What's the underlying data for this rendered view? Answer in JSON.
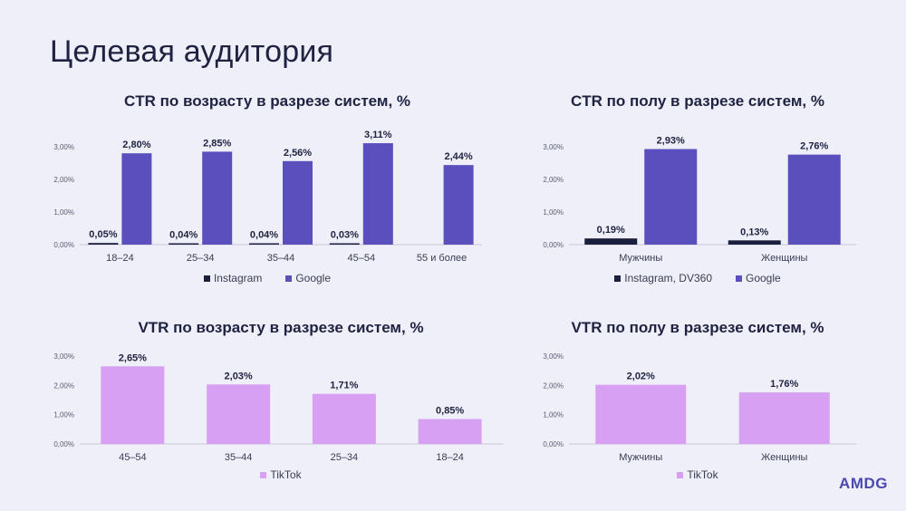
{
  "page": {
    "title": "Целевая аудитория",
    "logo": "AMDG"
  },
  "colors": {
    "instagram": "#1b1f3e",
    "google": "#5b4fbe",
    "tiktok": "#d8a0f2",
    "axis": "#c8c9d8",
    "text": "#1f2240"
  },
  "chart_data": [
    {
      "id": "ctr-age",
      "type": "bar",
      "title": "CTR по возрасту в разрезе систем, %",
      "categories": [
        "18–24",
        "25–34",
        "35–44",
        "45–54",
        "55 и более"
      ],
      "yticks": [
        "0,00%",
        "1,00%",
        "2,00%",
        "3,00%"
      ],
      "ylim": [
        0,
        3
      ],
      "series": [
        {
          "name": "Instagram",
          "color": "#1b1f3e",
          "values": [
            0.05,
            0.04,
            0.04,
            0.03,
            null
          ],
          "labels": [
            "0,05%",
            "0,04%",
            "0,04%",
            "0,03%",
            ""
          ]
        },
        {
          "name": "Google",
          "color": "#5b4fbe",
          "values": [
            2.8,
            2.85,
            2.56,
            3.11,
            2.44
          ],
          "labels": [
            "2,80%",
            "2,85%",
            "2,56%",
            "3,11%",
            "2,44%"
          ]
        }
      ],
      "legend": "bottom"
    },
    {
      "id": "ctr-gender",
      "type": "bar",
      "title": "CTR по полу в разрезе систем, %",
      "categories": [
        "Мужчины",
        "Женщины"
      ],
      "yticks": [
        "0,00%",
        "1,00%",
        "2,00%",
        "3,00%"
      ],
      "ylim": [
        0,
        3
      ],
      "series": [
        {
          "name": "Instagram, DV360",
          "color": "#1b1f3e",
          "values": [
            0.19,
            0.13
          ],
          "labels": [
            "0,19%",
            "0,13%"
          ]
        },
        {
          "name": "Google",
          "color": "#5b4fbe",
          "values": [
            2.93,
            2.76
          ],
          "labels": [
            "2,93%",
            "2,76%"
          ]
        }
      ],
      "legend": "bottom"
    },
    {
      "id": "vtr-age",
      "type": "bar",
      "title": "VTR по возрасту в разрезе систем, %",
      "categories": [
        "45–54",
        "35–44",
        "25–34",
        "18–24"
      ],
      "yticks": [
        "0,00%",
        "1,00%",
        "2,00%",
        "3,00%"
      ],
      "ylim": [
        0,
        3
      ],
      "series": [
        {
          "name": "TikTok",
          "color": "#d8a0f2",
          "values": [
            2.65,
            2.03,
            1.71,
            0.85
          ],
          "labels": [
            "2,65%",
            "2,03%",
            "1,71%",
            "0,85%"
          ]
        }
      ],
      "legend": "bottom"
    },
    {
      "id": "vtr-gender",
      "type": "bar",
      "title": "VTR по полу в разрезе систем, %",
      "categories": [
        "Мужчины",
        "Женщины"
      ],
      "yticks": [
        "0,00%",
        "1,00%",
        "2,00%",
        "3,00%"
      ],
      "ylim": [
        0,
        3
      ],
      "series": [
        {
          "name": "TikTok",
          "color": "#d8a0f2",
          "values": [
            2.02,
            1.76
          ],
          "labels": [
            "2,02%",
            "1,76%"
          ]
        }
      ],
      "legend": "bottom"
    }
  ]
}
